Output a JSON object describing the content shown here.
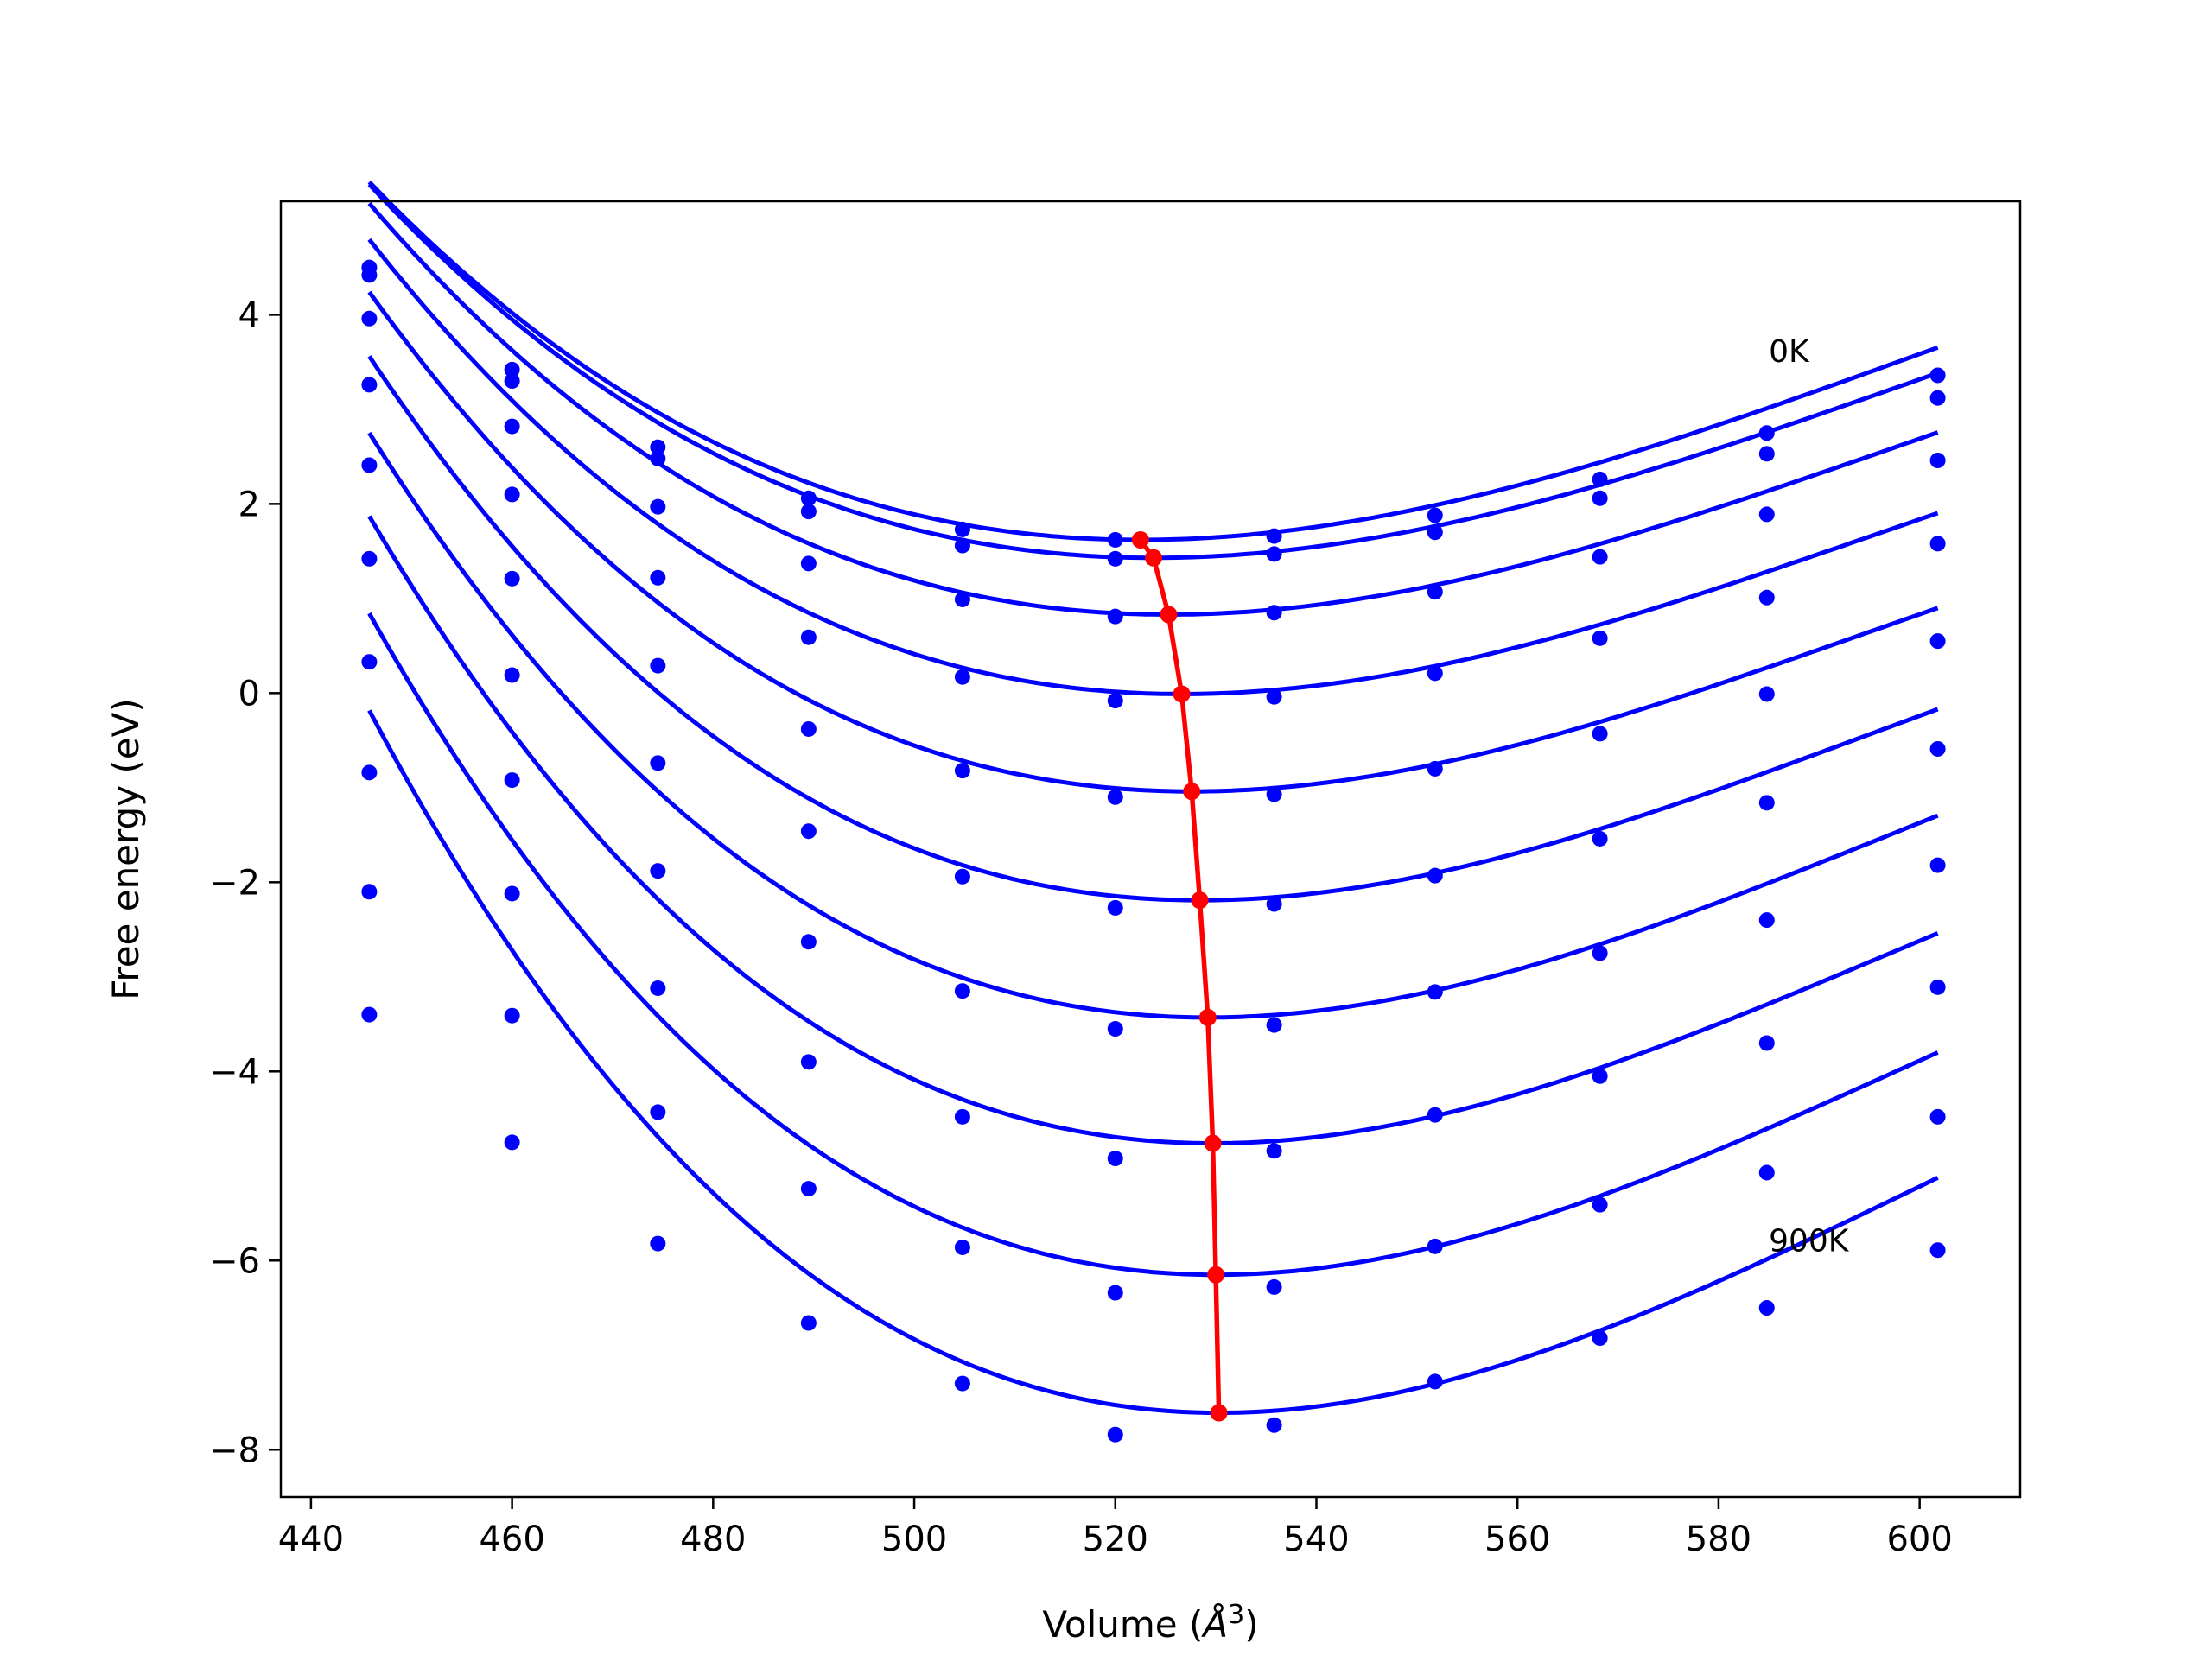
{
  "chart_data": {
    "type": "line",
    "title": "",
    "xlabel": "Volume (Å³)",
    "xlabel_parts": {
      "text": "Volume (",
      "symbol": "Å",
      "exponent": "3",
      "close": ")"
    },
    "ylabel": "Free energy (eV)",
    "xlim": [
      437,
      610
    ],
    "ylim": [
      -8.5,
      5.2
    ],
    "xticks": [
      440,
      460,
      480,
      500,
      520,
      540,
      560,
      580,
      600
    ],
    "yticks": [
      4,
      2,
      0,
      -2,
      -4,
      -6,
      -8
    ],
    "ytick_labels": [
      "4",
      "2",
      "0",
      "−2",
      "−4",
      "−6",
      "−8"
    ],
    "grid": false,
    "annotations": [
      {
        "text": "0K",
        "x": 585,
        "y": 3.5
      },
      {
        "text": "900K",
        "x": 585,
        "y": -5.9
      }
    ],
    "volumes": [
      445.8,
      460.0,
      474.5,
      489.5,
      504.8,
      520.0,
      535.8,
      551.8,
      568.2,
      584.8,
      601.8
    ],
    "curves": [
      {
        "fit": {
          "v0": 522.5,
          "e0": 1.62,
          "a": 0.000486,
          "b": 2.05e-06
        },
        "points": [
          4.5,
          3.42,
          2.6,
          2.06,
          1.73,
          1.62,
          1.66,
          1.88,
          2.26,
          2.75,
          3.36
        ]
      },
      {
        "fit": {
          "v0": 523.8,
          "e0": 1.43,
          "a": 0.000485,
          "b": 2.1e-06
        },
        "points": [
          4.42,
          3.3,
          2.48,
          1.92,
          1.56,
          1.42,
          1.47,
          1.7,
          2.06,
          2.53,
          3.12
        ]
      },
      {
        "fit": {
          "v0": 525.3,
          "e0": 0.83,
          "a": 0.000505,
          "b": 2.3e-06
        },
        "points": [
          3.96,
          2.82,
          1.97,
          1.37,
          0.99,
          0.81,
          0.85,
          1.07,
          1.44,
          1.89,
          2.46
        ]
      },
      {
        "fit": {
          "v0": 526.6,
          "e0": -0.01,
          "a": 0.00053,
          "b": 2.55e-06
        },
        "points": [
          3.26,
          2.1,
          1.22,
          0.59,
          0.17,
          -0.08,
          -0.04,
          0.21,
          0.58,
          1.01,
          1.58
        ]
      },
      {
        "fit": {
          "v0": 527.6,
          "e0": -1.04,
          "a": 0.00056,
          "b": 2.8e-06
        },
        "points": [
          2.41,
          1.21,
          0.29,
          -0.38,
          -0.82,
          -1.1,
          -1.07,
          -0.8,
          -0.43,
          -0.01,
          0.55
        ]
      },
      {
        "fit": {
          "v0": 528.4,
          "e0": -2.19,
          "a": 0.000595,
          "b": 3e-06
        },
        "points": [
          1.42,
          0.19,
          -0.74,
          -1.46,
          -1.94,
          -2.27,
          -2.23,
          -1.93,
          -1.54,
          -1.16,
          -0.59
        ]
      },
      {
        "fit": {
          "v0": 529.2,
          "e0": -3.43,
          "a": 0.00063,
          "b": 3.1e-06
        },
        "points": [
          0.33,
          -0.92,
          -1.88,
          -2.63,
          -3.15,
          -3.55,
          -3.51,
          -3.16,
          -2.75,
          -2.4,
          -1.82
        ]
      },
      {
        "fit": {
          "v0": 529.7,
          "e0": -4.76,
          "a": 0.000665,
          "b": 3.3e-06
        },
        "points": [
          -0.84,
          -2.12,
          -3.12,
          -3.9,
          -4.48,
          -4.92,
          -4.84,
          -4.46,
          -4.05,
          -3.7,
          -3.11
        ]
      },
      {
        "fit": {
          "v0": 530.0,
          "e0": -6.15,
          "a": 0.0007,
          "b": 3.4e-06
        },
        "points": [
          -2.1,
          -3.41,
          -4.43,
          -5.24,
          -5.86,
          -6.34,
          -6.28,
          -5.85,
          -5.41,
          -5.07,
          -4.48
        ]
      },
      {
        "fit": {
          "v0": 530.3,
          "e0": -7.61,
          "a": 0.00074,
          "b": 3.55e-06
        },
        "points": [
          -3.4,
          -4.75,
          -5.82,
          -6.66,
          -7.3,
          -7.84,
          -7.74,
          -7.28,
          -6.82,
          -6.5,
          -5.89
        ]
      }
    ],
    "minima_line": {
      "x": [
        522.5,
        523.8,
        525.3,
        526.6,
        527.6,
        528.4,
        529.2,
        529.7,
        530.0,
        530.3
      ],
      "y": [
        1.62,
        1.43,
        0.83,
        -0.01,
        -1.04,
        -2.19,
        -3.43,
        -4.76,
        -6.15,
        -7.61
      ]
    },
    "colors": {
      "curves": "#0000ff",
      "minima": "#ff0000",
      "axes": "#000000"
    }
  }
}
